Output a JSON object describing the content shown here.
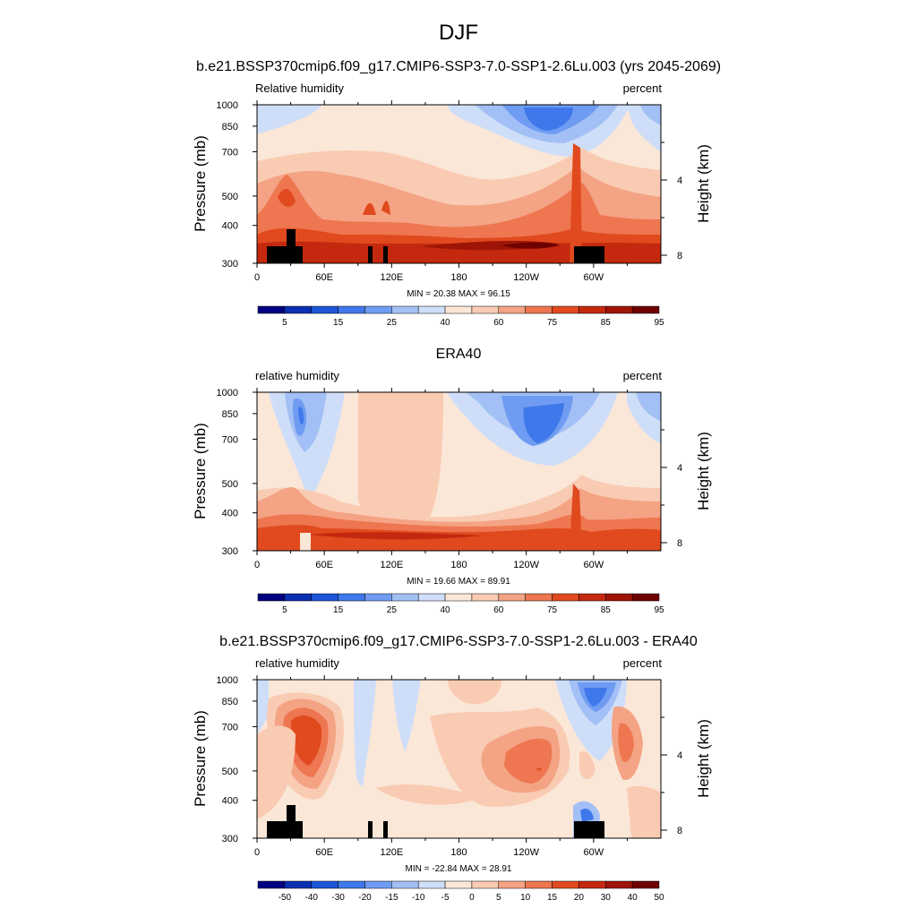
{
  "figure": {
    "title": "DJF"
  },
  "colors": {
    "rh_levels": [
      "#000080",
      "#0a2fb0",
      "#1e55d8",
      "#3f78ea",
      "#6f9cf2",
      "#a3c0f6",
      "#cfdef8",
      "#fbe7d8",
      "#f9cbb3",
      "#f4a384",
      "#ee7650",
      "#e04a1e",
      "#c4290f",
      "#9e1507",
      "#6e0000"
    ],
    "land": "#000000"
  },
  "chart_data": [
    {
      "type": "heatmap",
      "id": "panel1",
      "title": "b.e21.BSSP370cmip6.f09_g17.CMIP6-SSP3-7.0-SSP1-2.6Lu.003 (yrs 2045-2069)",
      "left_label": "Relative humidity",
      "right_label": "percent",
      "ylabel": "Pressure (mb)",
      "ylabel_right": "Height (km)",
      "y_ticks": [
        "300",
        "400",
        "500",
        "700",
        "850",
        "1000"
      ],
      "y_tick_values": [
        300,
        400,
        500,
        700,
        850,
        1000
      ],
      "right_ticks": [
        "8",
        "4"
      ],
      "right_tick_values": [
        8,
        4
      ],
      "x_ticks": [
        "0",
        "60E",
        "120E",
        "180",
        "120W",
        "60W"
      ],
      "x_tick_values": [
        0,
        60,
        120,
        180,
        240,
        300
      ],
      "xlim": [
        0,
        360
      ],
      "ylim": [
        1000,
        300
      ],
      "stats": "MIN =  20.38  MAX =  96.15",
      "colorbar_labels": [
        "5",
        "15",
        "25",
        "40",
        "60",
        "75",
        "85",
        "95"
      ]
    },
    {
      "type": "heatmap",
      "id": "panel2",
      "title": "ERA40",
      "left_label": "relative humidity",
      "right_label": "percent",
      "ylabel": "Pressure (mb)",
      "ylabel_right": "Height (km)",
      "y_ticks": [
        "300",
        "400",
        "500",
        "700",
        "850",
        "1000"
      ],
      "y_tick_values": [
        300,
        400,
        500,
        700,
        850,
        1000
      ],
      "right_ticks": [
        "8",
        "4"
      ],
      "right_tick_values": [
        8,
        4
      ],
      "x_ticks": [
        "0",
        "60E",
        "120E",
        "180",
        "120W",
        "60W"
      ],
      "x_tick_values": [
        0,
        60,
        120,
        180,
        240,
        300
      ],
      "xlim": [
        0,
        360
      ],
      "ylim": [
        1000,
        300
      ],
      "stats": "MIN =  19.66  MAX =  89.91",
      "colorbar_labels": [
        "5",
        "15",
        "25",
        "40",
        "60",
        "75",
        "85",
        "95"
      ]
    },
    {
      "type": "heatmap",
      "id": "panel3",
      "title": "b.e21.BSSP370cmip6.f09_g17.CMIP6-SSP3-7.0-SSP1-2.6Lu.003 - ERA40",
      "left_label": "relative humidity",
      "right_label": "percent",
      "ylabel": "Pressure (mb)",
      "ylabel_right": "Height (km)",
      "y_ticks": [
        "300",
        "400",
        "500",
        "700",
        "850",
        "1000"
      ],
      "y_tick_values": [
        300,
        400,
        500,
        700,
        850,
        1000
      ],
      "right_ticks": [
        "8",
        "4"
      ],
      "right_tick_values": [
        8,
        4
      ],
      "x_ticks": [
        "0",
        "60E",
        "120E",
        "180",
        "120W",
        "60W"
      ],
      "x_tick_values": [
        0,
        60,
        120,
        180,
        240,
        300
      ],
      "xlim": [
        0,
        360
      ],
      "ylim": [
        1000,
        300
      ],
      "stats": "MIN = -22.84  MAX =  28.91",
      "colorbar_labels": [
        "-50",
        "-40",
        "-30",
        "-20",
        "-15",
        "-10",
        "-5",
        "0",
        "5",
        "10",
        "15",
        "20",
        "30",
        "40",
        "50"
      ]
    }
  ]
}
